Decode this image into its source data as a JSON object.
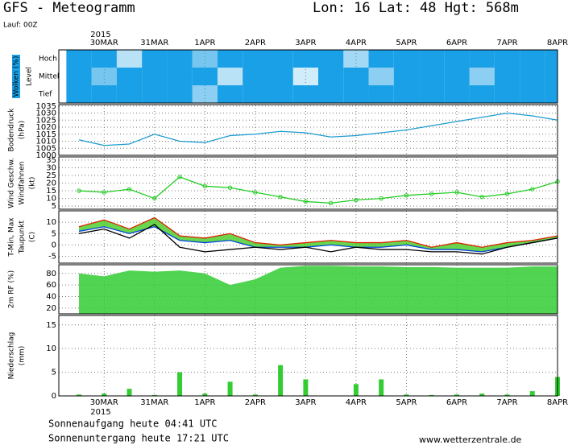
{
  "header": {
    "title": "GFS - Meteogramm",
    "location": "Lon: 16 Lat: 48 Hgt: 568m",
    "run": "Lauf: 00Z"
  },
  "xaxis": {
    "xlim": [
      -0.9,
      9.0
    ],
    "year": "2015",
    "xticks": [
      {
        "value": 0,
        "label": "30MAR"
      },
      {
        "value": 1,
        "label": "31MAR"
      },
      {
        "value": 2,
        "label": "1APR"
      },
      {
        "value": 3,
        "label": "2APR"
      },
      {
        "value": 4,
        "label": "3APR"
      },
      {
        "value": 5,
        "label": "4APR"
      },
      {
        "value": 6,
        "label": "5APR"
      },
      {
        "value": 7,
        "label": "6APR"
      },
      {
        "value": 8,
        "label": "7APR"
      },
      {
        "value": 9,
        "label": "8APR"
      }
    ]
  },
  "chart_data": [
    {
      "type": "heatmap",
      "ylabel": "Wolken (%)",
      "ylabel2": "Level",
      "categories": [
        "Hoch",
        "Mittel",
        "Tief"
      ],
      "color": "#1aa0e6",
      "x": [
        -0.5,
        0,
        0.5,
        1,
        1.5,
        2,
        2.5,
        3,
        3.5,
        4,
        4.5,
        5,
        5.5,
        6,
        6.5,
        7,
        7.5,
        8,
        8.5,
        9
      ],
      "series": [
        {
          "values": [
            100,
            100,
            30,
            100,
            100,
            60,
            100,
            100,
            100,
            100,
            100,
            40,
            100,
            100,
            100,
            100,
            100,
            100,
            100,
            100
          ]
        },
        {
          "values": [
            100,
            60,
            100,
            100,
            100,
            100,
            30,
            100,
            100,
            20,
            100,
            100,
            50,
            100,
            100,
            100,
            50,
            100,
            100,
            100
          ]
        },
        {
          "values": [
            100,
            100,
            100,
            100,
            100,
            50,
            100,
            100,
            100,
            100,
            100,
            100,
            100,
            100,
            100,
            100,
            100,
            100,
            100,
            100
          ]
        }
      ]
    },
    {
      "type": "line",
      "ylabel": "Bodendruck",
      "ylabel2": "(hPa)",
      "ylim": [
        1000,
        1036
      ],
      "yticks": [
        1000,
        1005,
        1010,
        1015,
        1020,
        1025,
        1030,
        1035
      ],
      "grid": true,
      "x": [
        -0.5,
        0,
        0.5,
        1,
        1.5,
        2,
        2.5,
        3,
        3.5,
        4,
        4.5,
        5,
        5.5,
        6,
        6.5,
        7,
        7.5,
        8,
        8.5,
        9
      ],
      "series": [
        {
          "color": "#1a9bd0",
          "values": [
            1011,
            1007,
            1008,
            1015,
            1010,
            1009,
            1014,
            1015,
            1017,
            1016,
            1013,
            1014,
            1016,
            1018,
            1021,
            1024,
            1027,
            1030,
            1028,
            1025
          ]
        }
      ]
    },
    {
      "type": "line",
      "ylabel": "Wind Geschw.",
      "ylabel2": "Windfahnen",
      "ylabel3": "(kt)",
      "ylim": [
        3,
        37
      ],
      "yticks": [
        5,
        10,
        15,
        20,
        25,
        30,
        35
      ],
      "grid": true,
      "markers": true,
      "x": [
        -0.5,
        0,
        0.5,
        1,
        1.5,
        2,
        2.5,
        3,
        3.5,
        4,
        4.5,
        5,
        5.5,
        6,
        6.5,
        7,
        7.5,
        8,
        8.5,
        9
      ],
      "series": [
        {
          "color": "#22cc22",
          "values": [
            15,
            14,
            16,
            10,
            24,
            18,
            17,
            14,
            11,
            8,
            7,
            9,
            10,
            12,
            13,
            14,
            11,
            13,
            16,
            21
          ]
        }
      ]
    },
    {
      "type": "temperature",
      "ylabel": "T-Min, Max",
      "ylabel2": "Taupunkt",
      "ylabel3": "(C)",
      "ylim": [
        -8,
        15
      ],
      "yticks": [
        -5,
        0,
        5,
        10
      ],
      "grid": true,
      "fill": "#44cc22",
      "x": [
        -0.5,
        0,
        0.5,
        1,
        1.5,
        2,
        2.5,
        3,
        3.5,
        4,
        4.5,
        5,
        5.5,
        6,
        6.5,
        7,
        7.5,
        8,
        8.5,
        9
      ],
      "series": [
        {
          "color": "#dd2200",
          "values": [
            8,
            11,
            7,
            12,
            4,
            3,
            5,
            1,
            0,
            1,
            2,
            1,
            1,
            2,
            -1,
            1,
            -1,
            1,
            2,
            4
          ]
        },
        {
          "color": "#0044dd",
          "values": [
            6,
            8,
            5,
            8,
            2,
            1,
            2,
            -1,
            -1,
            -1,
            0,
            -1,
            -1,
            0,
            -2,
            -2,
            -3,
            -1,
            1,
            3
          ]
        },
        {
          "color": "#000000",
          "values": [
            5,
            7,
            3,
            9,
            -1,
            -3,
            -2,
            -1,
            -2,
            -1,
            -3,
            -1,
            -2,
            -2,
            -3,
            -3,
            -4,
            -1,
            1,
            3
          ]
        }
      ]
    },
    {
      "type": "area",
      "ylabel": "2m RF (%)",
      "ylim": [
        10,
        95
      ],
      "yticks": [
        20,
        40,
        60,
        80
      ],
      "grid": true,
      "x": [
        -0.5,
        0,
        0.5,
        1,
        1.5,
        2,
        2.5,
        3,
        3.5,
        4,
        4.5,
        5,
        5.5,
        6,
        6.5,
        7,
        7.5,
        8,
        8.5,
        9
      ],
      "series": [
        {
          "color": "#33cc33",
          "values": [
            80,
            75,
            85,
            83,
            85,
            80,
            60,
            70,
            90,
            93,
            93,
            92,
            92,
            91,
            91,
            90,
            90,
            90,
            92,
            92
          ]
        }
      ]
    },
    {
      "type": "bar",
      "ylabel": "Niederschlag",
      "ylabel2": "(mm)",
      "ylim": [
        0,
        17
      ],
      "yticks": [
        0,
        5,
        10,
        15
      ],
      "grid": true,
      "x": [
        -0.5,
        0,
        0.5,
        1,
        1.5,
        2,
        2.5,
        3,
        3.5,
        4,
        4.5,
        5,
        5.5,
        6,
        6.5,
        7,
        7.5,
        8,
        8.5,
        9
      ],
      "series": [
        {
          "color": "#33cc33",
          "values": [
            0.3,
            0.5,
            1.5,
            0.2,
            5,
            0.5,
            3,
            0.3,
            6.5,
            3.5,
            0,
            2.5,
            3.5,
            0.3,
            0.2,
            0.3,
            0.5,
            0.3,
            1,
            4
          ]
        }
      ]
    }
  ],
  "footer": {
    "sunrise": "Sonnenaufgang heute 04:41 UTC",
    "sunset": "Sonnenuntergang heute 17:21 UTC",
    "source": "www.wetterzentrale.de"
  }
}
